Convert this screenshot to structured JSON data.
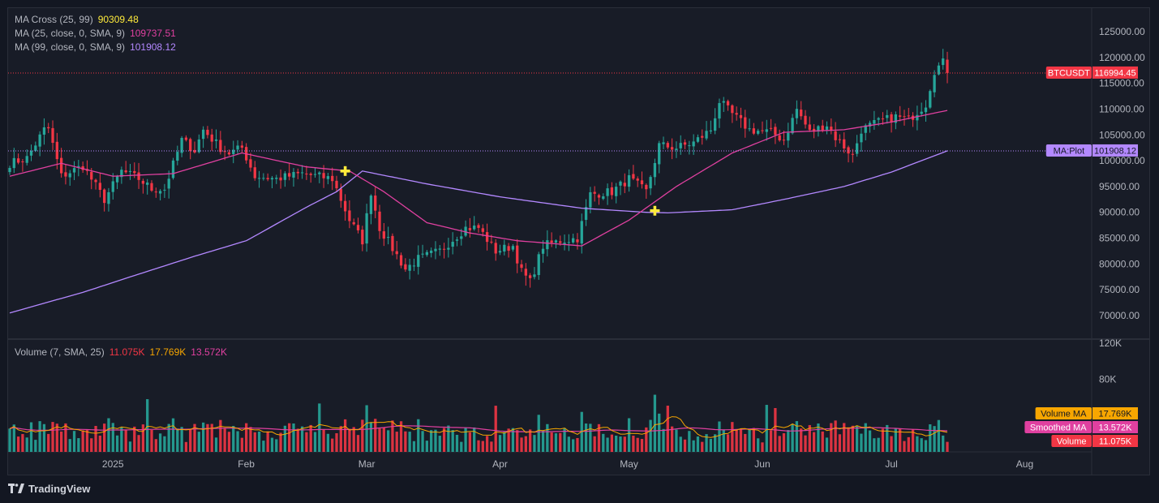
{
  "symbol": "BTCUSDT",
  "legend": {
    "ma_cross": {
      "label": "MA Cross (25, 99)",
      "value": "90309.48",
      "color": "#ffeb3b"
    },
    "ma25": {
      "label": "MA (25, close, 0, SMA, 9)",
      "value": "109737.51",
      "color": "#e040a0"
    },
    "ma99": {
      "label": "MA (99, close, 0, SMA, 9)",
      "value": "101908.12",
      "color": "#b388ff"
    },
    "volume": {
      "label": "Volume (7, SMA, 25)",
      "values": [
        "11.075K",
        "17.769K",
        "13.572K"
      ],
      "colors": [
        "#f23645",
        "#f7a600",
        "#e040a0"
      ]
    }
  },
  "badges": {
    "price": {
      "label": "BTCUSDT",
      "value": "116994.45",
      "color": "#f23645"
    },
    "ma_plot": {
      "label": "MA:Plot",
      "value": "101908.12",
      "color": "#b388ff"
    },
    "volume_ma": {
      "label": "Volume MA",
      "value": "17.769K",
      "color": "#f7a600"
    },
    "smoothed_ma": {
      "label": "Smoothed MA",
      "value": "13.572K",
      "color": "#e040a0"
    },
    "volume": {
      "label": "Volume",
      "value": "11.075K",
      "color": "#f23645"
    }
  },
  "watermark": "TradingView",
  "colors": {
    "up": "#26a69a",
    "down": "#f23645",
    "ma25": "#e040a0",
    "ma99": "#b388ff",
    "cross": "#ffeb3b",
    "vol_ma": "#f7a600",
    "grid": "#2a2e39",
    "text": "#b2b5be"
  },
  "chart_data": {
    "type": "candlestick",
    "price_axis": {
      "ticks": [
        125000,
        120000,
        115000,
        110000,
        105000,
        100000,
        95000,
        90000,
        85000,
        80000,
        75000,
        70000
      ],
      "labels": [
        "125000.00",
        "120000.00",
        "115000.00",
        "110000.00",
        "105000.00",
        "100000.00",
        "95000.00",
        "90000.00",
        "85000.00",
        "80000.00",
        "75000.00",
        "70000.00"
      ]
    },
    "volume_axis": {
      "ticks": [
        120000,
        80000
      ],
      "labels": [
        "120K",
        "80K"
      ]
    },
    "time_axis": {
      "labels": [
        "2025",
        "Feb",
        "Mar",
        "Apr",
        "May",
        "Jun",
        "Jul",
        "Aug"
      ],
      "dates": [
        "2025-01-01",
        "2025-02-01",
        "2025-03-01",
        "2025-04-01",
        "2025-05-01",
        "2025-06-01",
        "2025-07-01",
        "2025-08-01"
      ]
    },
    "date_range": {
      "start": "2024-12-08",
      "end": "2025-07-14"
    },
    "close_anchors": [
      [
        "2024-12-08",
        99500
      ],
      [
        "2024-12-12",
        100500
      ],
      [
        "2024-12-16",
        106000
      ],
      [
        "2024-12-17",
        106200
      ],
      [
        "2024-12-20",
        97000
      ],
      [
        "2024-12-25",
        99000
      ],
      [
        "2024-12-30",
        92500
      ],
      [
        "2025-01-03",
        98000
      ],
      [
        "2025-01-07",
        96500
      ],
      [
        "2025-01-10",
        94500
      ],
      [
        "2025-01-13",
        94500
      ],
      [
        "2025-01-17",
        104000
      ],
      [
        "2025-01-20",
        102000
      ],
      [
        "2025-01-22",
        106000
      ],
      [
        "2025-01-26",
        102500
      ],
      [
        "2025-01-28",
        101500
      ],
      [
        "2025-01-31",
        102500
      ],
      [
        "2025-02-03",
        97000
      ],
      [
        "2025-02-08",
        96500
      ],
      [
        "2025-02-14",
        97500
      ],
      [
        "2025-02-21",
        96500
      ],
      [
        "2025-02-25",
        88500
      ],
      [
        "2025-02-28",
        84500
      ],
      [
        "2025-03-02",
        94000
      ],
      [
        "2025-03-04",
        87000
      ],
      [
        "2025-03-10",
        79000
      ],
      [
        "2025-03-13",
        81000
      ],
      [
        "2025-03-18",
        82500
      ],
      [
        "2025-03-24",
        87000
      ],
      [
        "2025-03-27",
        87000
      ],
      [
        "2025-03-31",
        82500
      ],
      [
        "2025-04-04",
        83500
      ],
      [
        "2025-04-06",
        78500
      ],
      [
        "2025-04-08",
        76500
      ],
      [
        "2025-04-11",
        83500
      ],
      [
        "2025-04-15",
        84500
      ],
      [
        "2025-04-19",
        85000
      ],
      [
        "2025-04-22",
        93500
      ],
      [
        "2025-04-27",
        94000
      ],
      [
        "2025-05-01",
        96500
      ],
      [
        "2025-05-05",
        94000
      ],
      [
        "2025-05-08",
        103000
      ],
      [
        "2025-05-12",
        102500
      ],
      [
        "2025-05-16",
        103500
      ],
      [
        "2025-05-20",
        106000
      ],
      [
        "2025-05-22",
        111500
      ],
      [
        "2025-05-25",
        109000
      ],
      [
        "2025-05-29",
        106000
      ],
      [
        "2025-06-03",
        105500
      ],
      [
        "2025-06-06",
        104000
      ],
      [
        "2025-06-09",
        110000
      ],
      [
        "2025-06-12",
        105500
      ],
      [
        "2025-06-16",
        107000
      ],
      [
        "2025-06-18",
        104500
      ],
      [
        "2025-06-22",
        101000
      ],
      [
        "2025-06-24",
        106000
      ],
      [
        "2025-06-28",
        107500
      ],
      [
        "2025-07-02",
        108500
      ],
      [
        "2025-07-05",
        108000
      ],
      [
        "2025-07-09",
        111000
      ],
      [
        "2025-07-11",
        117500
      ],
      [
        "2025-07-13",
        119000
      ],
      [
        "2025-07-14",
        116994.45
      ]
    ],
    "ma25_anchors": [
      [
        "2024-12-08",
        97000
      ],
      [
        "2024-12-20",
        99500
      ],
      [
        "2025-01-01",
        97000
      ],
      [
        "2025-01-15",
        97500
      ],
      [
        "2025-01-31",
        101500
      ],
      [
        "2025-02-15",
        98800
      ],
      [
        "2025-02-25",
        98000
      ],
      [
        "2025-03-05",
        94000
      ],
      [
        "2025-03-15",
        88000
      ],
      [
        "2025-03-25",
        86000
      ],
      [
        "2025-04-05",
        84500
      ],
      [
        "2025-04-20",
        83500
      ],
      [
        "2025-05-01",
        88500
      ],
      [
        "2025-05-12",
        95000
      ],
      [
        "2025-05-25",
        101500
      ],
      [
        "2025-06-06",
        105500
      ],
      [
        "2025-06-20",
        106000
      ],
      [
        "2025-07-01",
        107500
      ],
      [
        "2025-07-14",
        109737.51
      ]
    ],
    "ma99_anchors": [
      [
        "2024-12-08",
        70500
      ],
      [
        "2024-12-25",
        74500
      ],
      [
        "2025-01-05",
        77500
      ],
      [
        "2025-01-20",
        81500
      ],
      [
        "2025-02-01",
        84500
      ],
      [
        "2025-02-15",
        91000
      ],
      [
        "2025-02-22",
        94000
      ],
      [
        "2025-02-28",
        98000
      ],
      [
        "2025-03-15",
        95500
      ],
      [
        "2025-04-01",
        93000
      ],
      [
        "2025-04-20",
        90800
      ],
      [
        "2025-05-05",
        90000
      ],
      [
        "2025-05-10",
        89900
      ],
      [
        "2025-05-25",
        90500
      ],
      [
        "2025-06-06",
        92500
      ],
      [
        "2025-06-20",
        95000
      ],
      [
        "2025-07-01",
        97800
      ],
      [
        "2025-07-14",
        101908.12
      ]
    ],
    "crosses": [
      {
        "date": "2025-02-24",
        "price": 98000
      },
      {
        "date": "2025-05-07",
        "price": 90309.48
      }
    ],
    "last_volume": 11075,
    "volume_ma": 17769,
    "smoothed_ma": 13572
  }
}
